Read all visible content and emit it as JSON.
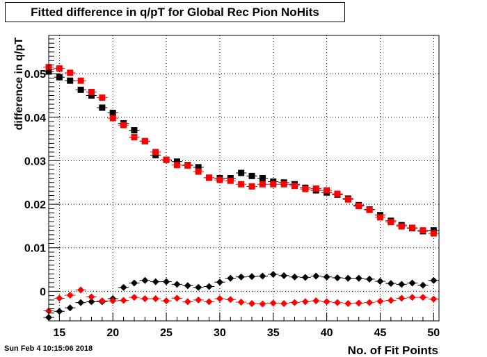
{
  "title": "Fitted difference in q/pT for Global Rec Pion NoHits",
  "footer": "Sun Feb  4 10:15:06 2018",
  "chart_data": {
    "type": "scatter",
    "title": "Fitted difference in q/pT for Global Rec Pion NoHits",
    "xlabel": "No. of Fit Points",
    "ylabel": "difference in q/pT",
    "xlim": [
      14,
      50.5
    ],
    "ylim": [
      -0.0068,
      0.0588
    ],
    "x_ticks": [
      15,
      20,
      25,
      30,
      35,
      40,
      45,
      50
    ],
    "y_ticks": [
      0,
      0.01,
      0.02,
      0.03,
      0.04,
      0.05
    ],
    "y_tick_labels": [
      "0",
      "0.01",
      "0.02",
      "0.03",
      "0.04",
      "0.05"
    ],
    "grid": true,
    "series": [
      {
        "color": "#000000",
        "marker": "square",
        "x": [
          14,
          15,
          16,
          17,
          18,
          19,
          20,
          21,
          22,
          23,
          24,
          25,
          26,
          27,
          28,
          29,
          30,
          31,
          32,
          33,
          34,
          35,
          36,
          37,
          38,
          39,
          40,
          41,
          42,
          43,
          44,
          45,
          46,
          47,
          48,
          49,
          50
        ],
        "y": [
          0.0505,
          0.0492,
          0.0484,
          0.0463,
          0.045,
          0.0422,
          0.041,
          0.0386,
          0.037,
          0.0345,
          0.0313,
          0.0302,
          0.0298,
          0.029,
          0.0285,
          0.0261,
          0.026,
          0.026,
          0.0272,
          0.0265,
          0.026,
          0.0252,
          0.025,
          0.0246,
          0.0238,
          0.0232,
          0.0227,
          0.0222,
          0.0213,
          0.0198,
          0.0188,
          0.0175,
          0.0162,
          0.0152,
          0.0145,
          0.0138,
          0.014
        ]
      },
      {
        "color": "#ff0000",
        "marker": "square",
        "x": [
          14,
          15,
          16,
          17,
          18,
          19,
          20,
          21,
          22,
          23,
          24,
          25,
          26,
          27,
          28,
          29,
          30,
          31,
          32,
          33,
          34,
          35,
          36,
          37,
          38,
          39,
          40,
          41,
          42,
          43,
          44,
          45,
          46,
          47,
          48,
          49,
          50
        ],
        "y": [
          0.0515,
          0.0512,
          0.0502,
          0.0484,
          0.0458,
          0.0445,
          0.0398,
          0.0382,
          0.0354,
          0.0345,
          0.032,
          0.0302,
          0.029,
          0.0289,
          0.0275,
          0.0261,
          0.0256,
          0.0254,
          0.0246,
          0.0241,
          0.0246,
          0.0246,
          0.0246,
          0.0242,
          0.0235,
          0.0236,
          0.0232,
          0.0224,
          0.0211,
          0.0196,
          0.0187,
          0.017,
          0.0159,
          0.0149,
          0.0146,
          0.014,
          0.0133
        ]
      },
      {
        "color": "#000000",
        "marker": "diamond",
        "x": [
          14,
          15,
          16,
          17,
          18,
          19,
          20,
          21,
          22,
          23,
          24,
          25,
          26,
          27,
          28,
          29,
          30,
          31,
          32,
          33,
          34,
          35,
          36,
          37,
          38,
          39,
          40,
          41,
          42,
          43,
          44,
          45,
          46,
          47,
          48,
          49,
          50
        ],
        "y": [
          -0.006,
          -0.0046,
          -0.0038,
          -0.0026,
          -0.0024,
          -0.0024,
          -0.0017,
          0.0009,
          0.0019,
          0.0025,
          0.0022,
          0.0022,
          0.0016,
          0.0013,
          0.0009,
          0.0011,
          0.0021,
          0.003,
          0.0033,
          0.0034,
          0.0035,
          0.0039,
          0.0036,
          0.0033,
          0.0032,
          0.0035,
          0.0033,
          0.0031,
          0.003,
          0.003,
          0.0028,
          0.0023,
          0.0018,
          0.0016,
          0.0019,
          0.0014,
          0.0025
        ]
      },
      {
        "color": "#ff0000",
        "marker": "diamond",
        "x": [
          14,
          15,
          16,
          17,
          18,
          19,
          20,
          21,
          22,
          23,
          24,
          25,
          26,
          27,
          28,
          29,
          30,
          31,
          32,
          33,
          34,
          35,
          36,
          37,
          38,
          39,
          40,
          41,
          42,
          43,
          44,
          45,
          46,
          47,
          48,
          49,
          50
        ],
        "y": [
          -0.0045,
          -0.0016,
          -0.0009,
          0.0003,
          -0.0013,
          -0.0022,
          -0.0022,
          -0.0021,
          -0.0014,
          -0.0017,
          -0.0017,
          -0.0022,
          -0.0016,
          -0.0024,
          -0.002,
          -0.0024,
          -0.0017,
          -0.0019,
          -0.0025,
          -0.0028,
          -0.0029,
          -0.0027,
          -0.0028,
          -0.0026,
          -0.0024,
          -0.0022,
          -0.0024,
          -0.0026,
          -0.0028,
          -0.0027,
          -0.0026,
          -0.0023,
          -0.0021,
          -0.0016,
          -0.0014,
          -0.0014,
          -0.0018
        ]
      }
    ]
  }
}
